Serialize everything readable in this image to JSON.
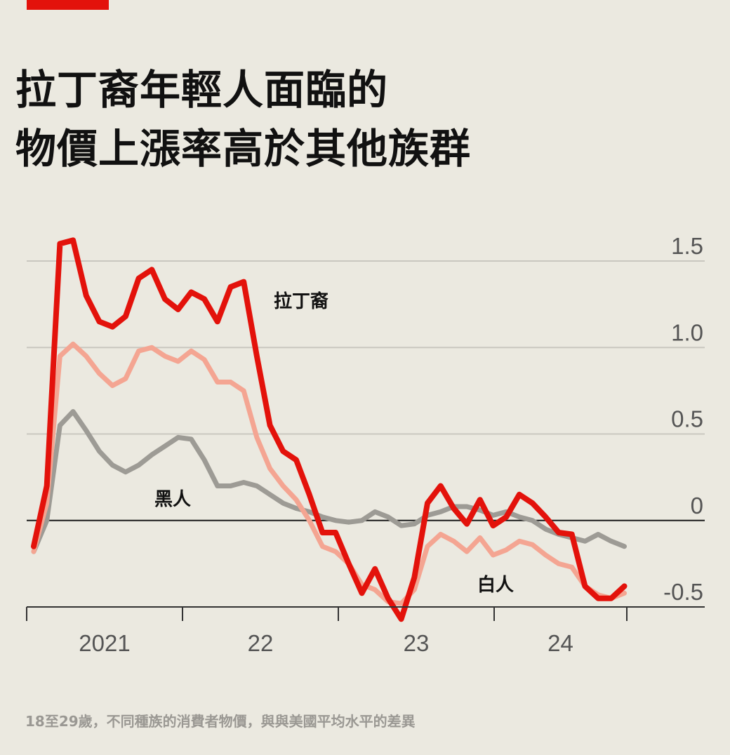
{
  "header": {
    "accent_color": "#e3120b",
    "title_line1": "拉丁裔年輕人面臨的",
    "title_line2": "物價上漲率高於其他族群"
  },
  "footnote": "18至29歲，不同種族的消費者物價，與與美國平均水平的差異",
  "chart_data": {
    "type": "line",
    "title": "拉丁裔年輕人面臨的物價上漲率高於其他族群",
    "subtitle": "18至29歲，不同種族的消費者物價，與與美國平均水平的差異",
    "xlabel": "",
    "ylabel": "",
    "x_ticks": [
      "2021",
      "22",
      "23",
      "24"
    ],
    "x_range": [
      "2021-01",
      "2024-10"
    ],
    "y_ticks": [
      "1.5",
      "1.0",
      "0.5",
      "0",
      "-0.5"
    ],
    "ylim": [
      -0.5,
      1.5
    ],
    "y_axis_side": "right",
    "grid": true,
    "x": [
      "2021-01",
      "2021-02",
      "2021-03",
      "2021-04",
      "2021-05",
      "2021-06",
      "2021-07",
      "2021-08",
      "2021-09",
      "2021-10",
      "2021-11",
      "2021-12",
      "2022-01",
      "2022-02",
      "2022-03",
      "2022-04",
      "2022-05",
      "2022-06",
      "2022-07",
      "2022-08",
      "2022-09",
      "2022-10",
      "2022-11",
      "2022-12",
      "2023-01",
      "2023-02",
      "2023-03",
      "2023-04",
      "2023-05",
      "2023-06",
      "2023-07",
      "2023-08",
      "2023-09",
      "2023-10",
      "2023-11",
      "2023-12",
      "2024-01",
      "2024-02",
      "2024-03",
      "2024-04",
      "2024-05",
      "2024-06",
      "2024-07",
      "2024-08",
      "2024-09",
      "2024-10"
    ],
    "series": [
      {
        "name": "拉丁裔",
        "color": "#e3120b",
        "values": [
          -0.15,
          0.2,
          1.6,
          1.62,
          1.3,
          1.15,
          1.12,
          1.18,
          1.4,
          1.45,
          1.28,
          1.22,
          1.32,
          1.28,
          1.15,
          1.35,
          1.38,
          0.95,
          0.55,
          0.4,
          0.35,
          0.15,
          -0.07,
          -0.07,
          -0.25,
          -0.42,
          -0.28,
          -0.45,
          -0.57,
          -0.33,
          0.1,
          0.2,
          0.07,
          -0.02,
          0.12,
          -0.03,
          0.02,
          0.15,
          0.1,
          0.02,
          -0.07,
          -0.08,
          -0.38,
          -0.45,
          -0.45,
          -0.38
        ]
      },
      {
        "name": "白人",
        "color": "#f4a592",
        "values": [
          -0.18,
          0.1,
          0.95,
          1.02,
          0.95,
          0.85,
          0.78,
          0.82,
          0.98,
          1.0,
          0.95,
          0.92,
          0.98,
          0.93,
          0.8,
          0.8,
          0.75,
          0.48,
          0.3,
          0.2,
          0.12,
          0.0,
          -0.15,
          -0.18,
          -0.25,
          -0.37,
          -0.4,
          -0.47,
          -0.48,
          -0.4,
          -0.15,
          -0.08,
          -0.12,
          -0.18,
          -0.1,
          -0.2,
          -0.17,
          -0.12,
          -0.14,
          -0.2,
          -0.25,
          -0.27,
          -0.38,
          -0.43,
          -0.45,
          -0.42
        ]
      },
      {
        "name": "黑人",
        "color": "#9d9b95",
        "values": [
          -0.18,
          0.0,
          0.55,
          0.63,
          0.52,
          0.4,
          0.32,
          0.28,
          0.32,
          0.38,
          0.43,
          0.48,
          0.47,
          0.35,
          0.2,
          0.2,
          0.22,
          0.2,
          0.15,
          0.1,
          0.07,
          0.05,
          0.02,
          0.0,
          -0.01,
          0.0,
          0.05,
          0.02,
          -0.03,
          -0.02,
          0.03,
          0.05,
          0.08,
          0.08,
          0.06,
          0.03,
          0.05,
          0.02,
          0.0,
          -0.05,
          -0.08,
          -0.1,
          -0.12,
          -0.08,
          -0.12,
          -0.15
        ]
      }
    ]
  }
}
